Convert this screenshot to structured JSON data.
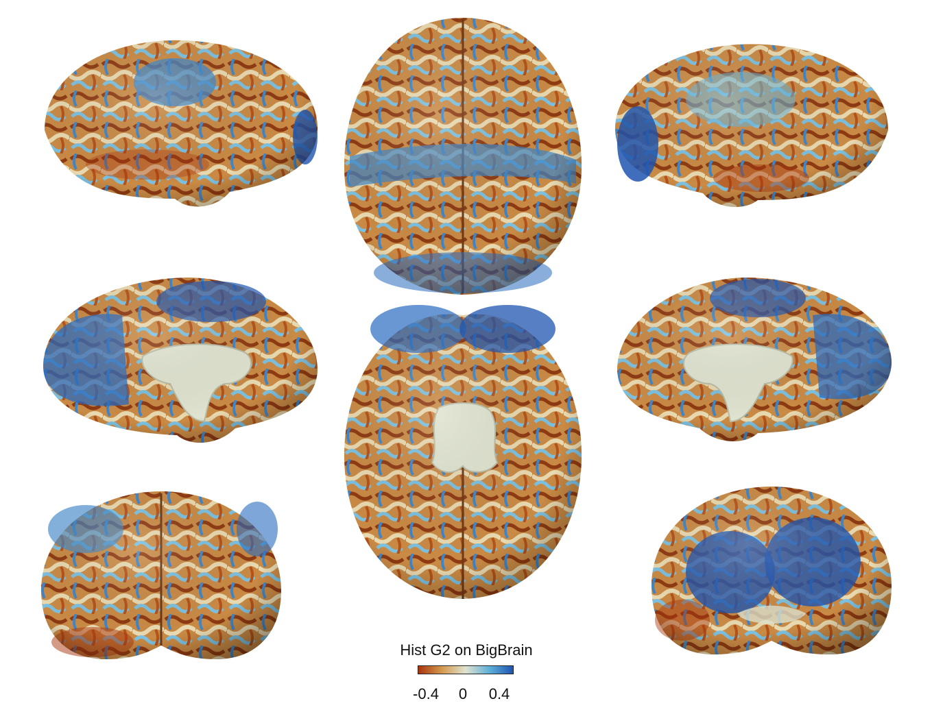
{
  "colorbar": {
    "title": "Hist G2 on BigBrain",
    "ticks": [
      "-0.4",
      "0",
      "0.4"
    ],
    "colors": {
      "low": "#a8350e",
      "mid_low": "#d49a4e",
      "mid": "#dfe3cf",
      "mid_high": "#5fb0d8",
      "high": "#1f55b0"
    }
  },
  "views": [
    {
      "name": "lateral-left",
      "icon": "brain-lateral-view"
    },
    {
      "name": "dorsal",
      "icon": "brain-dorsal-view"
    },
    {
      "name": "lateral-right",
      "icon": "brain-lateral-view"
    },
    {
      "name": "medial-left",
      "icon": "brain-medial-view"
    },
    {
      "name": "ventral",
      "icon": "brain-ventral-view"
    },
    {
      "name": "medial-right",
      "icon": "brain-medial-view"
    },
    {
      "name": "anterior",
      "icon": "brain-anterior-view"
    },
    {
      "name": "posterior",
      "icon": "brain-posterior-view"
    }
  ]
}
